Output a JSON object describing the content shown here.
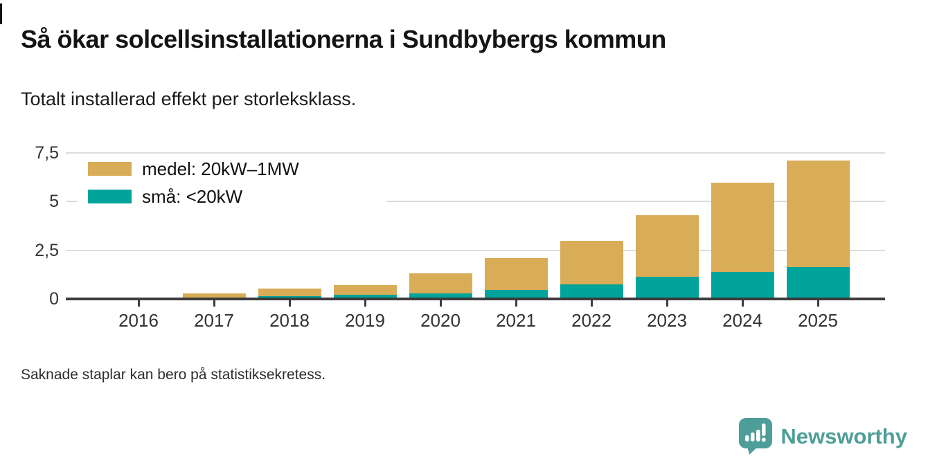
{
  "header": {
    "title": "Så ökar solcellsinstallationerna i Sundbybergs kommun",
    "subtitle": "Totalt installerad effekt per storleksklass."
  },
  "footer": {
    "note": "Saknade staplar kan bero på statistiksekretess."
  },
  "branding": {
    "name": "Newsworthy",
    "color": "#4d9e98"
  },
  "chart_data": {
    "type": "bar",
    "stacked": true,
    "title": "Så ökar solcellsinstallationerna i Sundbybergs kommun",
    "subtitle": "Totalt installerad effekt per storleksklass.",
    "xlabel": "",
    "ylabel": "",
    "categories": [
      "2016",
      "2017",
      "2018",
      "2019",
      "2020",
      "2021",
      "2022",
      "2023",
      "2024",
      "2025"
    ],
    "series": [
      {
        "name": "små: <20kW",
        "color": "#00a49a",
        "values": [
          0,
          0.05,
          0.15,
          0.2,
          0.3,
          0.45,
          0.74,
          1.15,
          1.38,
          1.62
        ]
      },
      {
        "name": "medel: 20kW–1MW",
        "color": "#d9ac58",
        "values": [
          0,
          0.22,
          0.4,
          0.52,
          1.0,
          1.65,
          2.23,
          3.15,
          4.6,
          5.5
        ]
      }
    ],
    "legend": [
      {
        "label": "medel: 20kW–1MW",
        "color": "#d9ac58"
      },
      {
        "label": "små: <20kW",
        "color": "#00a49a"
      }
    ],
    "legend_position": "top-left",
    "grid": true,
    "ylim": [
      0,
      7.5
    ],
    "yticks": [
      {
        "value": 0,
        "label": "0"
      },
      {
        "value": 2.5,
        "label": "2,5"
      },
      {
        "value": 5,
        "label": "5"
      },
      {
        "value": 7.5,
        "label": "7,5"
      }
    ]
  }
}
